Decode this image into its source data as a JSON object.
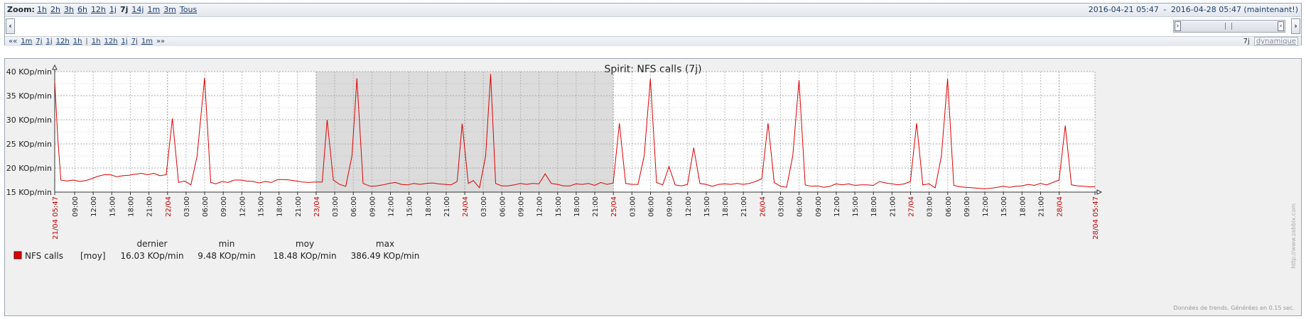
{
  "filter": {
    "zoom_label": "Zoom:",
    "zoom_links": [
      {
        "label": "1h",
        "active": false
      },
      {
        "label": "2h",
        "active": false
      },
      {
        "label": "3h",
        "active": false
      },
      {
        "label": "6h",
        "active": false
      },
      {
        "label": "12h",
        "active": false
      },
      {
        "label": "1j",
        "active": false
      },
      {
        "label": "7j",
        "active": true
      },
      {
        "label": "14j",
        "active": false
      },
      {
        "label": "1m",
        "active": false
      },
      {
        "label": "3m",
        "active": false
      },
      {
        "label": "Tous",
        "active": false
      }
    ],
    "date_from": "2016-04-21 05:47",
    "date_sep": "-",
    "date_to": "2016-04-28 05:47 (maintenant!)",
    "nav_left_icon": "chevron-left-icon",
    "nav_right_icon": "chevron-right-icon",
    "nav_left_glyph": "‹",
    "nav_right_glyph": "›",
    "slider_left_glyph": "›",
    "slider_right_glyph": "‹",
    "back_links": [
      "««",
      "1m",
      "7j",
      "1j",
      "12h",
      "1h"
    ],
    "separator": "|",
    "fwd_links": [
      "1h",
      "12h",
      "1j",
      "7j",
      "1m",
      "»»"
    ],
    "period_value": "7j",
    "dynamic_label": "dynamique"
  },
  "graph": {
    "title": "Spirit: NFS calls (7j)",
    "watermark": "http://www.zabbix.com",
    "footer": "Données de trends. Générées en 0.15 sec.",
    "colors": {
      "series": "#dd0000",
      "grid": "#a0a0a0",
      "day_label": "#c00000",
      "axis": "#333333",
      "shade": "#dcdcdc",
      "plot_bg": "#f0f0f0"
    }
  },
  "chart_data": {
    "type": "line",
    "title": "Spirit: NFS calls (7j)",
    "ylim": [
      15,
      40
    ],
    "yticks": [
      "15 KOp/min",
      "20 KOp/min",
      "25 KOp/min",
      "30 KOp/min",
      "35 KOp/min",
      "40 KOp/min"
    ],
    "x_range_hours": [
      0,
      168
    ],
    "x_labels": [
      {
        "h": 0,
        "label": "21/04 05:47",
        "red": true
      },
      {
        "h": 3.22,
        "label": "09:00",
        "red": false
      },
      {
        "h": 6.22,
        "label": "12:00",
        "red": false
      },
      {
        "h": 9.22,
        "label": "15:00",
        "red": false
      },
      {
        "h": 12.22,
        "label": "18:00",
        "red": false
      },
      {
        "h": 15.22,
        "label": "21:00",
        "red": false
      },
      {
        "h": 18.22,
        "label": "22/04",
        "red": true
      },
      {
        "h": 21.22,
        "label": "03:00",
        "red": false
      },
      {
        "h": 24.22,
        "label": "06:00",
        "red": false
      },
      {
        "h": 27.22,
        "label": "09:00",
        "red": false
      },
      {
        "h": 30.22,
        "label": "12:00",
        "red": false
      },
      {
        "h": 33.22,
        "label": "15:00",
        "red": false
      },
      {
        "h": 36.22,
        "label": "18:00",
        "red": false
      },
      {
        "h": 39.22,
        "label": "21:00",
        "red": false
      },
      {
        "h": 42.22,
        "label": "23/04",
        "red": true
      },
      {
        "h": 45.22,
        "label": "03:00",
        "red": false
      },
      {
        "h": 48.22,
        "label": "06:00",
        "red": false
      },
      {
        "h": 51.22,
        "label": "09:00",
        "red": false
      },
      {
        "h": 54.22,
        "label": "12:00",
        "red": false
      },
      {
        "h": 57.22,
        "label": "15:00",
        "red": false
      },
      {
        "h": 60.22,
        "label": "18:00",
        "red": false
      },
      {
        "h": 63.22,
        "label": "21:00",
        "red": false
      },
      {
        "h": 66.22,
        "label": "24/04",
        "red": true
      },
      {
        "h": 69.22,
        "label": "03:00",
        "red": false
      },
      {
        "h": 72.22,
        "label": "06:00",
        "red": false
      },
      {
        "h": 75.22,
        "label": "09:00",
        "red": false
      },
      {
        "h": 78.22,
        "label": "12:00",
        "red": false
      },
      {
        "h": 81.22,
        "label": "15:00",
        "red": false
      },
      {
        "h": 84.22,
        "label": "18:00",
        "red": false
      },
      {
        "h": 87.22,
        "label": "21:00",
        "red": false
      },
      {
        "h": 90.22,
        "label": "25/04",
        "red": true
      },
      {
        "h": 93.22,
        "label": "03:00",
        "red": false
      },
      {
        "h": 96.22,
        "label": "06:00",
        "red": false
      },
      {
        "h": 99.22,
        "label": "09:00",
        "red": false
      },
      {
        "h": 102.22,
        "label": "12:00",
        "red": false
      },
      {
        "h": 105.22,
        "label": "15:00",
        "red": false
      },
      {
        "h": 108.22,
        "label": "18:00",
        "red": false
      },
      {
        "h": 111.22,
        "label": "21:00",
        "red": false
      },
      {
        "h": 114.22,
        "label": "26/04",
        "red": true
      },
      {
        "h": 117.22,
        "label": "03:00",
        "red": false
      },
      {
        "h": 120.22,
        "label": "06:00",
        "red": false
      },
      {
        "h": 123.22,
        "label": "09:00",
        "red": false
      },
      {
        "h": 126.22,
        "label": "12:00",
        "red": false
      },
      {
        "h": 129.22,
        "label": "15:00",
        "red": false
      },
      {
        "h": 132.22,
        "label": "18:00",
        "red": false
      },
      {
        "h": 135.22,
        "label": "21:00",
        "red": false
      },
      {
        "h": 138.22,
        "label": "27/04",
        "red": true
      },
      {
        "h": 141.22,
        "label": "03:00",
        "red": false
      },
      {
        "h": 144.22,
        "label": "06:00",
        "red": false
      },
      {
        "h": 147.22,
        "label": "09:00",
        "red": false
      },
      {
        "h": 150.22,
        "label": "12:00",
        "red": false
      },
      {
        "h": 153.22,
        "label": "15:00",
        "red": false
      },
      {
        "h": 156.22,
        "label": "18:00",
        "red": false
      },
      {
        "h": 159.22,
        "label": "21:00",
        "red": false
      },
      {
        "h": 162.22,
        "label": "28/04",
        "red": true
      },
      {
        "h": 168,
        "label": "28/04 05:47",
        "red": true
      }
    ],
    "weekend_shade_hours": [
      42.22,
      90.22
    ],
    "series": [
      {
        "name": "NFS calls",
        "points": [
          [
            0,
            38
          ],
          [
            0.5,
            26
          ],
          [
            1,
            17.5
          ],
          [
            2,
            17.3
          ],
          [
            3,
            17.5
          ],
          [
            4,
            17.2
          ],
          [
            5,
            17.4
          ],
          [
            6,
            17.8
          ],
          [
            7,
            18.3
          ],
          [
            8,
            18.6
          ],
          [
            9,
            18.6
          ],
          [
            10,
            18.2
          ],
          [
            11,
            18.4
          ],
          [
            12,
            18.5
          ],
          [
            13,
            18.7
          ],
          [
            14,
            18.9
          ],
          [
            15,
            18.6
          ],
          [
            16,
            18.9
          ],
          [
            17,
            18.4
          ],
          [
            18,
            18.6
          ],
          [
            19,
            30.3
          ],
          [
            20,
            17.0
          ],
          [
            21,
            17.3
          ],
          [
            22,
            16.5
          ],
          [
            23,
            22.5
          ],
          [
            24.2,
            38.7
          ],
          [
            25.2,
            17.0
          ],
          [
            26,
            16.7
          ],
          [
            27,
            17.2
          ],
          [
            28,
            17.0
          ],
          [
            29,
            17.5
          ],
          [
            30,
            17.5
          ],
          [
            31,
            17.3
          ],
          [
            32,
            17.2
          ],
          [
            33,
            16.9
          ],
          [
            34,
            17.2
          ],
          [
            35,
            17.0
          ],
          [
            36,
            17.6
          ],
          [
            37,
            17.6
          ],
          [
            38,
            17.5
          ],
          [
            39,
            17.3
          ],
          [
            40,
            17.1
          ],
          [
            41,
            17.0
          ],
          [
            42,
            17.1
          ],
          [
            43,
            17.1
          ],
          [
            43.2,
            17.1
          ],
          [
            44,
            30.0
          ],
          [
            45,
            17.5
          ],
          [
            46,
            16.6
          ],
          [
            47,
            16.2
          ],
          [
            48,
            22.5
          ],
          [
            48.8,
            38.6
          ],
          [
            49.8,
            16.8
          ],
          [
            51,
            16.2
          ],
          [
            52,
            16.3
          ],
          [
            53,
            16.5
          ],
          [
            54,
            16.8
          ],
          [
            55,
            17.0
          ],
          [
            56,
            16.6
          ],
          [
            57,
            16.5
          ],
          [
            58,
            16.8
          ],
          [
            59,
            16.6
          ],
          [
            60,
            16.8
          ],
          [
            61,
            16.9
          ],
          [
            62,
            16.7
          ],
          [
            63,
            16.6
          ],
          [
            64,
            16.5
          ],
          [
            65,
            17.2
          ],
          [
            65.8,
            29.2
          ],
          [
            66.8,
            16.8
          ],
          [
            67.6,
            17.4
          ],
          [
            68.6,
            15.9
          ],
          [
            69.6,
            22.5
          ],
          [
            70.4,
            39.5
          ],
          [
            71.2,
            16.8
          ],
          [
            72.2,
            16.3
          ],
          [
            73.2,
            16.3
          ],
          [
            74.2,
            16.5
          ],
          [
            75.2,
            16.8
          ],
          [
            76.2,
            16.6
          ],
          [
            77.2,
            16.8
          ],
          [
            78.2,
            16.7
          ],
          [
            79.2,
            18.8
          ],
          [
            80.2,
            16.8
          ],
          [
            81.2,
            16.6
          ],
          [
            82.2,
            16.3
          ],
          [
            83.2,
            16.3
          ],
          [
            84.2,
            16.7
          ],
          [
            85.2,
            16.6
          ],
          [
            86.2,
            16.8
          ],
          [
            87.2,
            16.4
          ],
          [
            88.2,
            17.0
          ],
          [
            89.2,
            16.6
          ],
          [
            90.2,
            16.9
          ],
          [
            91.2,
            29.3
          ],
          [
            92.2,
            16.8
          ],
          [
            93.2,
            16.6
          ],
          [
            94.2,
            16.6
          ],
          [
            95.2,
            22.5
          ],
          [
            96.2,
            38.5
          ],
          [
            97.2,
            17.0
          ],
          [
            98.2,
            16.5
          ],
          [
            99.2,
            20.3
          ],
          [
            100.2,
            16.5
          ],
          [
            101.2,
            16.3
          ],
          [
            102.2,
            16.6
          ],
          [
            103.2,
            24.2
          ],
          [
            104.2,
            16.8
          ],
          [
            105.2,
            16.6
          ],
          [
            106.2,
            16.2
          ],
          [
            107.2,
            16.6
          ],
          [
            108.2,
            16.7
          ],
          [
            109.2,
            16.6
          ],
          [
            110.2,
            16.8
          ],
          [
            111.2,
            16.6
          ],
          [
            112.2,
            16.8
          ],
          [
            113.2,
            17.2
          ],
          [
            114.2,
            17.8
          ],
          [
            115.2,
            29.3
          ],
          [
            116.2,
            17.0
          ],
          [
            117.2,
            16.2
          ],
          [
            118.2,
            16.0
          ],
          [
            119.2,
            22.5
          ],
          [
            120.2,
            38.2
          ],
          [
            121.2,
            16.5
          ],
          [
            122.2,
            16.2
          ],
          [
            123.2,
            16.3
          ],
          [
            124.2,
            16.0
          ],
          [
            125.2,
            16.2
          ],
          [
            126.2,
            16.7
          ],
          [
            127.2,
            16.5
          ],
          [
            128.2,
            16.7
          ],
          [
            129.2,
            16.4
          ],
          [
            130.2,
            16.5
          ],
          [
            131.2,
            16.5
          ],
          [
            132.2,
            16.4
          ],
          [
            133.2,
            17.2
          ],
          [
            134.2,
            16.9
          ],
          [
            135.2,
            16.7
          ],
          [
            136.2,
            16.5
          ],
          [
            137.2,
            16.7
          ],
          [
            138.2,
            17.2
          ],
          [
            139.2,
            29.3
          ],
          [
            140.2,
            16.5
          ],
          [
            141.2,
            16.7
          ],
          [
            142.2,
            15.9
          ],
          [
            143.2,
            22.5
          ],
          [
            144.2,
            38.5
          ],
          [
            145.2,
            16.4
          ],
          [
            146.2,
            16.1
          ],
          [
            147.2,
            16.0
          ],
          [
            148.2,
            15.9
          ],
          [
            149.2,
            15.8
          ],
          [
            150.2,
            15.7
          ],
          [
            151.2,
            15.8
          ],
          [
            152.2,
            16.0
          ],
          [
            153.2,
            16.2
          ],
          [
            154.2,
            16.0
          ],
          [
            155.2,
            16.2
          ],
          [
            156.2,
            16.3
          ],
          [
            157.2,
            16.6
          ],
          [
            158.2,
            16.4
          ],
          [
            159.2,
            16.8
          ],
          [
            160.2,
            16.5
          ],
          [
            161.2,
            17.0
          ],
          [
            162.2,
            17.5
          ],
          [
            163.2,
            28.8
          ],
          [
            164.2,
            16.5
          ],
          [
            165.2,
            16.3
          ],
          [
            166.2,
            16.2
          ],
          [
            167.2,
            16.1
          ],
          [
            168,
            16.1
          ]
        ]
      }
    ],
    "legend": {
      "position": "bottom-left",
      "headers": [
        "dernier",
        "min",
        "moy",
        "max"
      ],
      "items": [
        {
          "name": "NFS calls",
          "func": "[moy]",
          "dernier": "16.03 KOp/min",
          "min": "9.48 KOp/min",
          "moy": "18.48 KOp/min",
          "max": "386.49 KOp/min"
        }
      ]
    }
  }
}
